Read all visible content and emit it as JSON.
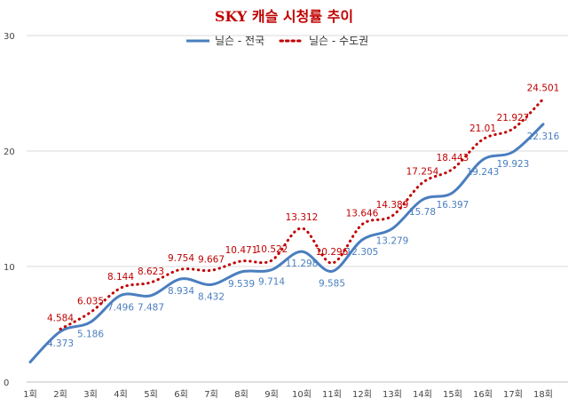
{
  "chart_data": {
    "type": "line",
    "title": "SKY 캐슬 시청률 추이",
    "categories": [
      "1회",
      "2회",
      "3회",
      "4회",
      "5회",
      "6회",
      "7회",
      "8회",
      "9회",
      "10회",
      "11회",
      "12회",
      "13회",
      "14회",
      "15회",
      "16회",
      "17회",
      "18회"
    ],
    "ylim": [
      0,
      30
    ],
    "yticks": [
      0,
      10,
      20,
      30
    ],
    "grid": true,
    "legend_position": "top",
    "series": [
      {
        "name": "닐슨 - 전국",
        "color": "#4a7ebf",
        "style": "solid",
        "values": [
          1.73,
          4.373,
          5.186,
          7.496,
          7.487,
          8.934,
          8.432,
          9.539,
          9.714,
          11.298,
          9.585,
          12.305,
          13.279,
          15.78,
          16.397,
          19.243,
          19.923,
          22.316
        ],
        "labels": [
          null,
          "4.373",
          "5.186",
          "7.496",
          "7.487",
          "8.934",
          "8.432",
          "9.539",
          "9.714",
          "11.298",
          "9.585",
          "12.305",
          "13.279",
          "15.78",
          "16.397",
          "19.243",
          "19.923",
          "22.316"
        ]
      },
      {
        "name": "닐슨 - 수도권",
        "color": "#c00000",
        "style": "dotted",
        "values": [
          null,
          4.584,
          6.035,
          8.144,
          8.623,
          9.754,
          9.667,
          10.471,
          10.522,
          13.312,
          10.296,
          13.646,
          14.389,
          17.254,
          18.443,
          21.01,
          21.927,
          24.501
        ],
        "labels": [
          null,
          "4.584",
          "6.035",
          "8.144",
          "8.623",
          "9.754",
          "9.667",
          "10.471",
          "10.522",
          "13.312",
          "10.296",
          "13.646",
          "14.389",
          "17.254",
          "18.443",
          "21.01",
          "21.927",
          "24.501"
        ]
      }
    ]
  }
}
